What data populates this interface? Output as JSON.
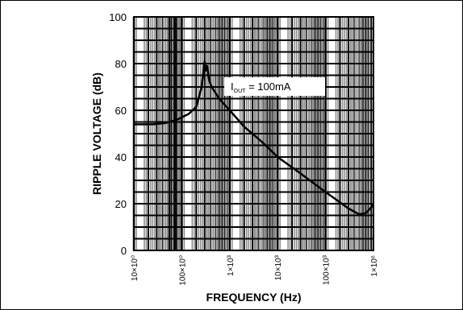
{
  "chart_data": {
    "type": "line",
    "x_scale": "log",
    "x_domain": [
      10,
      1000000
    ],
    "ylim": [
      0,
      100
    ],
    "xlabel": "FREQUENCY (Hz)",
    "ylabel": "RIPPLE VOLTAGE (dB)",
    "x_tick_values": [
      10,
      100,
      1000,
      10000,
      100000,
      1000000
    ],
    "x_tick_labels": [
      "10×10⁰",
      "100×10⁰",
      "1×10³",
      "10×10³",
      "100×10³",
      "1×10⁶"
    ],
    "y_ticks": [
      0,
      20,
      40,
      60,
      80,
      100
    ],
    "grid": true,
    "annotation": {
      "main": "I",
      "sub": "OUT",
      "rest": " = 100mA"
    },
    "series": [
      {
        "x": [
          10,
          25,
          45,
          80,
          140,
          200,
          260,
          300,
          320,
          340,
          370,
          420,
          600,
          1000,
          2000,
          5000,
          10000,
          30000,
          100000,
          300000,
          500000,
          700000,
          1000000
        ],
        "y": [
          54,
          54,
          54.5,
          56,
          58.5,
          61.5,
          70,
          81,
          77,
          79,
          73,
          70,
          65,
          60,
          53,
          46,
          40,
          33,
          25,
          18,
          15.5,
          16,
          19.5
        ]
      }
    ],
    "colors": {
      "line": "#000000",
      "grid_dark": "#000000",
      "grid_light": "#8a8a8a",
      "label_bg": "#ffffff"
    }
  }
}
